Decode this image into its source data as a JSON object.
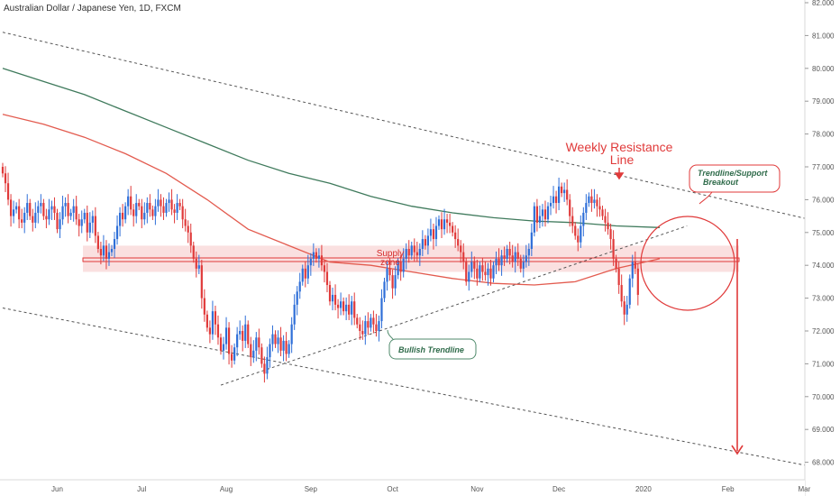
{
  "header": {
    "title": "Australian Dollar / Japanese Yen, 1D, FXCM"
  },
  "colors": {
    "bull": "#2f6fd8",
    "bear": "#e03a3a",
    "ma_slow": "#3f7a5c",
    "ma_fast": "#e35b4f",
    "zone": "#f6c7c7",
    "annotation": "#e03a3a",
    "axis_text": "#555555",
    "grid": "#f0f3fa"
  },
  "chart_data": {
    "type": "candlestick",
    "title": "Australian Dollar / Japanese Yen, 1D, FXCM",
    "ylim": [
      67.7,
      82.1
    ],
    "y_ticks": [
      "68.000",
      "69.000",
      "70.000",
      "71.000",
      "72.000",
      "73.000",
      "74.000",
      "75.000",
      "76.000",
      "77.000",
      "78.000",
      "79.000",
      "80.000",
      "81.000",
      "82.000"
    ],
    "x_ticks": [
      "Jun",
      "Jul",
      "Aug",
      "Sep",
      "Oct",
      "Nov",
      "Dec",
      "2020",
      "Feb",
      "Mar"
    ],
    "x_tick_days": [
      20,
      51,
      82,
      113,
      143,
      174,
      204,
      235,
      266,
      294
    ],
    "grid": false,
    "candles_close": [
      76.8,
      76.5,
      76.0,
      75.5,
      75.7,
      75.8,
      75.4,
      75.3,
      75.6,
      75.9,
      75.5,
      75.3,
      75.6,
      75.8,
      75.9,
      75.5,
      75.4,
      75.7,
      75.8,
      75.6,
      75.1,
      75.4,
      75.8,
      75.9,
      75.5,
      75.6,
      75.8,
      75.4,
      75.2,
      75.4,
      75.6,
      75.0,
      75.3,
      75.5,
      74.9,
      74.5,
      74.3,
      74.6,
      74.2,
      74.4,
      74.5,
      74.8,
      75.2,
      75.6,
      75.4,
      75.8,
      76.1,
      75.7,
      75.5,
      75.9,
      75.8,
      75.4,
      75.6,
      75.9,
      75.7,
      75.5,
      75.8,
      76.0,
      75.8,
      75.6,
      75.9,
      76.0,
      75.7,
      75.6,
      75.9,
      75.8,
      75.4,
      75.2,
      75.0,
      74.6,
      74.2,
      73.9,
      74.0,
      73.0,
      72.5,
      72.1,
      71.9,
      72.6,
      72.2,
      71.8,
      71.4,
      71.6,
      72.1,
      71.3,
      71.1,
      71.5,
      71.9,
      72.0,
      71.7,
      72.2,
      71.6,
      71.2,
      71.4,
      71.8,
      71.5,
      71.0,
      70.7,
      71.2,
      71.6,
      71.9,
      71.6,
      71.8,
      71.4,
      71.7,
      71.3,
      71.6,
      72.2,
      72.8,
      73.2,
      73.5,
      73.9,
      73.6,
      74.0,
      74.2,
      74.4,
      74.2,
      74.3,
      74.0,
      73.8,
      73.4,
      72.9,
      73.1,
      72.8,
      72.7,
      72.9,
      72.6,
      72.8,
      72.5,
      72.9,
      72.4,
      72.2,
      72.0,
      71.9,
      72.3,
      72.1,
      72.4,
      72.2,
      72.0,
      72.3,
      73.0,
      73.5,
      73.9,
      73.7,
      73.3,
      73.7,
      74.1,
      73.8,
      74.2,
      74.5,
      74.3,
      74.6,
      74.4,
      74.3,
      74.5,
      74.8,
      74.6,
      74.9,
      75.1,
      74.8,
      75.2,
      75.4,
      75.1,
      75.4,
      75.3,
      75.2,
      75.0,
      74.8,
      74.6,
      74.4,
      74.1,
      73.5,
      73.8,
      74.1,
      73.9,
      73.6,
      74.0,
      73.8,
      73.7,
      73.9,
      73.6,
      74.0,
      74.2,
      74.0,
      74.3,
      74.2,
      74.5,
      74.3,
      74.1,
      74.4,
      74.2,
      73.9,
      74.1,
      74.3,
      74.5,
      75.0,
      75.8,
      75.3,
      75.5,
      75.7,
      75.4,
      75.8,
      75.9,
      76.1,
      75.9,
      76.4,
      76.2,
      76.3,
      76.0,
      75.5,
      75.2,
      74.9,
      74.7,
      75.2,
      75.6,
      75.9,
      76.1,
      75.9,
      76.0,
      75.8,
      75.7,
      75.5,
      75.3,
      75.1,
      74.8,
      74.2,
      73.9,
      73.4,
      72.9,
      72.5,
      72.8,
      73.6,
      74.1,
      73.9,
      73.1
    ],
    "ma_slow_values": [
      80.0,
      79.6,
      79.2,
      78.7,
      78.2,
      77.7,
      77.2,
      76.8,
      76.5,
      76.1,
      75.8,
      75.6,
      75.45,
      75.35,
      75.3,
      75.2,
      75.15
    ],
    "ma_slow_days": [
      0,
      15,
      30,
      45,
      60,
      75,
      90,
      105,
      120,
      135,
      150,
      165,
      180,
      195,
      210,
      225,
      241
    ],
    "ma_fast_values": [
      78.6,
      78.3,
      77.9,
      77.4,
      76.8,
      76.0,
      75.1,
      74.6,
      74.1,
      74.0,
      73.8,
      73.6,
      73.45,
      73.4,
      73.5,
      73.9,
      74.2
    ],
    "ma_fast_days": [
      0,
      15,
      30,
      45,
      60,
      75,
      90,
      105,
      120,
      135,
      150,
      165,
      180,
      195,
      210,
      225,
      241
    ],
    "supply_zone": [
      73.8,
      74.6
    ],
    "supply_line": 74.17,
    "lines": [
      {
        "name": "upper channel",
        "from": [
          0,
          81.1
        ],
        "to": [
          301,
          75.3
        ]
      },
      {
        "name": "lower channel",
        "from": [
          0,
          72.7
        ],
        "to": [
          301,
          67.8
        ]
      },
      {
        "name": "bullish trendline",
        "from": [
          80,
          70.35
        ],
        "to": [
          251,
          75.2
        ]
      }
    ],
    "annotations": [
      {
        "text": "Weekly Resistance",
        "text2": "Line"
      },
      {
        "text": "Supply",
        "text2": "zone"
      },
      {
        "text": "Trendline/Support",
        "text2": "Breakout"
      },
      {
        "text": "Bullish Trendline"
      }
    ]
  }
}
